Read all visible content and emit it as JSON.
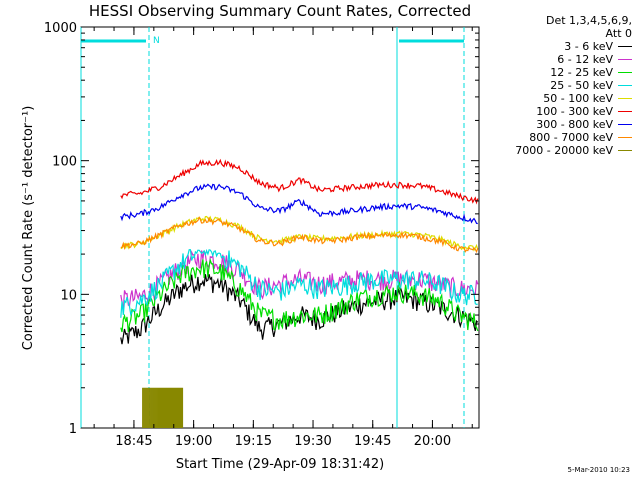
{
  "chart_data": {
    "type": "line",
    "title": "HESSI Observing Summary Count Rates, Corrected",
    "xlabel": "Start Time (29-Apr-09 18:31:42)",
    "ylabel": "Corrected Count Rate (s⁻¹ detector⁻¹)",
    "yscale": "log",
    "ylim": [
      1,
      1000
    ],
    "xlim_minutes_after_1831": [
      0,
      100
    ],
    "x_ticks": [
      "18:45",
      "19:00",
      "19:15",
      "19:30",
      "19:45",
      "20:00"
    ],
    "y_ticks": [
      "1",
      "10",
      "100",
      "1000"
    ],
    "night_marker": "N",
    "legend_header": [
      "Det 1,3,4,5,6,9,",
      "Att 0"
    ],
    "footer": "5-Mar-2010 10:23",
    "x_minutes": [
      5,
      10,
      15,
      20,
      25,
      30,
      35,
      40,
      45,
      50,
      55,
      60,
      65,
      70,
      75,
      80,
      85,
      90,
      95,
      100
    ],
    "series": [
      {
        "name": "3 - 6 keV",
        "color": "#000000",
        "values": [
          null,
          4.5,
          5.5,
          8,
          11,
          13,
          12,
          9,
          5.5,
          6,
          7,
          6.5,
          7.5,
          8.5,
          9,
          9.5,
          9,
          8,
          7,
          6
        ]
      },
      {
        "name": "6 - 12 keV",
        "color": "#cc33cc",
        "values": [
          null,
          9,
          9.5,
          12,
          16,
          19,
          18,
          15,
          11,
          12,
          13,
          12,
          12.5,
          13,
          13,
          13,
          13,
          12,
          11,
          11
        ]
      },
      {
        "name": "12 - 25 keV",
        "color": "#00dd00",
        "values": [
          null,
          6,
          7,
          10,
          14,
          16,
          15,
          11,
          7,
          6.5,
          7,
          7,
          8,
          9.5,
          10,
          10.5,
          10,
          9,
          7,
          6
        ]
      },
      {
        "name": "25 - 50 keV",
        "color": "#00dddd",
        "values": [
          null,
          8,
          9,
          12,
          17,
          21,
          20,
          16,
          11,
          10.5,
          12,
          11,
          11.5,
          12.5,
          13,
          13,
          13,
          12,
          10,
          10
        ]
      },
      {
        "name": "50 - 100 keV",
        "color": "#dddd00",
        "values": [
          null,
          23,
          24,
          28,
          33,
          37,
          36,
          32,
          26,
          25,
          27,
          26,
          26.5,
          27.5,
          28,
          28.5,
          28,
          26,
          23,
          22
        ]
      },
      {
        "name": "100 - 300 keV",
        "color": "#ee0000",
        "values": [
          null,
          55,
          57,
          64,
          78,
          95,
          97,
          88,
          68,
          62,
          72,
          60,
          62,
          64,
          66,
          66,
          65,
          60,
          54,
          50
        ]
      },
      {
        "name": "300 - 800 keV",
        "color": "#0000ee",
        "values": [
          null,
          38,
          40,
          45,
          55,
          63,
          64,
          57,
          44,
          42,
          50,
          40,
          41,
          43,
          45,
          46,
          45,
          42,
          38,
          35
        ]
      },
      {
        "name": "800 - 7000 keV",
        "color": "#ff8800",
        "values": [
          null,
          23,
          24,
          28,
          33,
          36,
          35,
          31,
          25,
          24,
          27,
          25,
          25.5,
          27,
          27.5,
          28,
          27,
          25,
          22,
          21
        ]
      },
      {
        "name": "7000 - 20000 keV",
        "color": "#888800",
        "values": [
          null,
          null,
          null,
          null,
          null,
          null,
          null,
          null,
          null,
          null,
          null,
          null,
          null,
          null,
          null,
          null,
          null,
          null,
          null,
          null
        ],
        "burst_range_minutes": [
          15.5,
          25.5
        ],
        "burst_max": 2
      }
    ],
    "grid": false,
    "legend_position": "right"
  }
}
